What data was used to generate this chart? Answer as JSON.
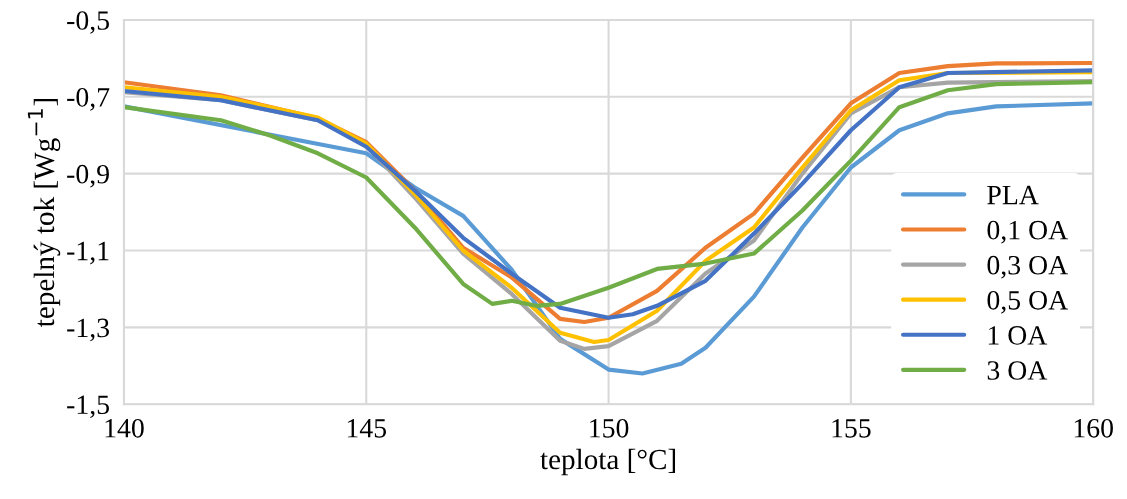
{
  "chart_data": {
    "type": "line",
    "xlabel": "teplota [°C]",
    "ylabel": "tepelný tok [Wg$^{−1}$]",
    "xlim": [
      140,
      160
    ],
    "xticks": [
      140,
      145,
      150,
      155,
      160
    ],
    "ylim": [
      -1.5,
      -0.5
    ],
    "yticks": [
      {
        "value": -1.5,
        "label": "-1,5"
      },
      {
        "value": -1.3,
        "label": "-1,3"
      },
      {
        "value": -1.1,
        "label": "-1,1"
      },
      {
        "value": -0.9,
        "label": "-0,9"
      },
      {
        "value": -0.7,
        "label": "-0,7"
      },
      {
        "value": -0.5,
        "label": "-0,5"
      }
    ],
    "grid": true,
    "legend": "right",
    "marker": "none",
    "line_style": "solid",
    "series": [
      {
        "name": "PLA",
        "color": "#5b9bd5",
        "x": [
          140,
          145,
          146,
          147,
          148,
          149,
          150,
          150.7,
          151.5,
          152,
          153,
          154,
          155,
          156,
          157,
          158,
          160
        ],
        "values": [
          -0.725,
          -0.847,
          -0.936,
          -1.01,
          -1.15,
          -1.33,
          -1.41,
          -1.42,
          -1.395,
          -1.353,
          -1.22,
          -1.04,
          -0.884,
          -0.787,
          -0.743,
          -0.725,
          -0.717
        ]
      },
      {
        "name": "0,1 OA",
        "color": "#ed7d31",
        "x": [
          140,
          142,
          144,
          145,
          146,
          147,
          148,
          149,
          149.5,
          150,
          151,
          152,
          153,
          154,
          155,
          156,
          157,
          158,
          160
        ],
        "values": [
          -0.662,
          -0.696,
          -0.756,
          -0.818,
          -0.944,
          -1.093,
          -1.17,
          -1.278,
          -1.286,
          -1.275,
          -1.205,
          -1.093,
          -1.004,
          -0.858,
          -0.717,
          -0.638,
          -0.62,
          -0.613,
          -0.612
        ]
      },
      {
        "name": "0,3 OA",
        "color": "#a5a5a5",
        "x": [
          140,
          142,
          144,
          145,
          146,
          147,
          148,
          149,
          149.5,
          150,
          151,
          152,
          153,
          154,
          155,
          156,
          157,
          160
        ],
        "values": [
          -0.688,
          -0.709,
          -0.761,
          -0.826,
          -0.962,
          -1.108,
          -1.213,
          -1.335,
          -1.356,
          -1.349,
          -1.283,
          -1.16,
          -1.074,
          -0.9,
          -0.743,
          -0.675,
          -0.663,
          -0.659
        ]
      },
      {
        "name": "0,5 OA",
        "color": "#ffc000",
        "x": [
          140,
          142,
          144,
          145,
          146,
          147,
          148,
          149,
          149.7,
          150,
          151,
          152,
          153,
          154,
          155,
          156,
          157,
          160
        ],
        "values": [
          -0.675,
          -0.7,
          -0.754,
          -0.822,
          -0.953,
          -1.1,
          -1.197,
          -1.314,
          -1.338,
          -1.333,
          -1.257,
          -1.127,
          -1.04,
          -0.884,
          -0.735,
          -0.657,
          -0.638,
          -0.636
        ]
      },
      {
        "name": "1 OA",
        "color": "#4472c4",
        "x": [
          140,
          142,
          144,
          145,
          146,
          147,
          148,
          149,
          150,
          150.5,
          151,
          152,
          153,
          154,
          155,
          156,
          157,
          160
        ],
        "values": [
          -0.685,
          -0.709,
          -0.761,
          -0.83,
          -0.944,
          -1.067,
          -1.16,
          -1.249,
          -1.275,
          -1.266,
          -1.244,
          -1.179,
          -1.056,
          -0.926,
          -0.787,
          -0.675,
          -0.638,
          -0.631
        ]
      },
      {
        "name": "3 OA",
        "color": "#70ad47",
        "x": [
          140,
          142,
          143,
          144,
          145,
          146,
          147,
          147.6,
          148,
          148.5,
          149,
          150,
          151,
          152,
          153,
          154,
          155,
          156,
          157,
          158,
          160
        ],
        "values": [
          -0.727,
          -0.761,
          -0.8,
          -0.847,
          -0.91,
          -1.04,
          -1.187,
          -1.239,
          -1.231,
          -1.244,
          -1.239,
          -1.197,
          -1.148,
          -1.134,
          -1.108,
          -0.996,
          -0.866,
          -0.727,
          -0.683,
          -0.667,
          -0.662
        ]
      }
    ]
  }
}
